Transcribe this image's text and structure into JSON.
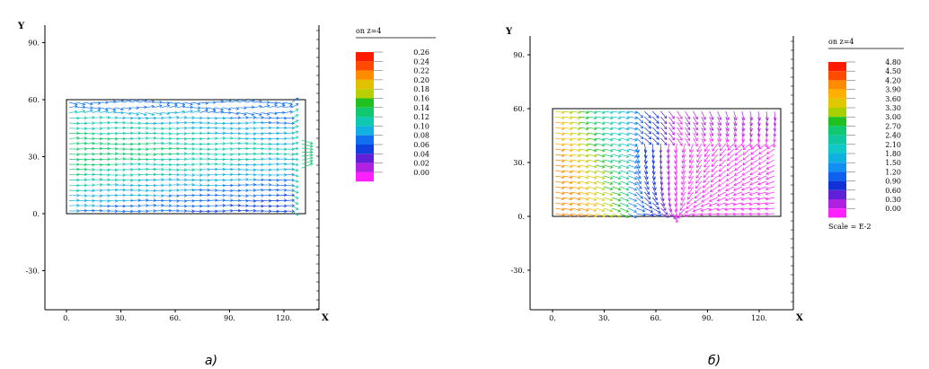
{
  "panels": [
    {
      "id": "a",
      "caption": "а)",
      "x_axis_name": "X",
      "y_axis_name": "Y",
      "x_ticks": [
        "0.",
        "30.",
        "60.",
        "90.",
        "120."
      ],
      "y_ticks": [
        "90.",
        "60.",
        "30.",
        "0.",
        "-30."
      ],
      "legend_title": "on z=4",
      "legend_values": [
        "0.26",
        "0.24",
        "0.22",
        "0.20",
        "0.18",
        "0.16",
        "0.14",
        "0.12",
        "0.10",
        "0.08",
        "0.06",
        "0.04",
        "0.02",
        "0.00"
      ],
      "legend_colors": [
        "#ff1a00",
        "#ff4a00",
        "#ff8c00",
        "#e0c000",
        "#b8d000",
        "#20c020",
        "#10c870",
        "#10c8b0",
        "#10b0e0",
        "#1070f0",
        "#1040e0",
        "#6020d8",
        "#b020e0",
        "#ff20ff"
      ],
      "legend_note": ""
    },
    {
      "id": "b",
      "caption": "б)",
      "x_axis_name": "X",
      "y_axis_name": "Y",
      "x_ticks": [
        "0.",
        "30.",
        "60.",
        "90.",
        "120."
      ],
      "y_ticks": [
        "90.",
        "60.",
        "30.",
        "0.",
        "-30."
      ],
      "legend_title": "on z=4",
      "legend_values": [
        "4.80",
        "4.50",
        "4.20",
        "3.90",
        "3.60",
        "3.30",
        "3.00",
        "2.70",
        "2.40",
        "2.10",
        "1.80",
        "1.50",
        "1.20",
        "0.90",
        "0.60",
        "0.30",
        "0.00"
      ],
      "legend_colors": [
        "#ff1a00",
        "#ff4a00",
        "#ff8c00",
        "#ffb000",
        "#e0c800",
        "#a8d000",
        "#20c020",
        "#10c870",
        "#10c8a0",
        "#10c8c8",
        "#10b0e0",
        "#1090f0",
        "#1060f0",
        "#1030d8",
        "#6020d8",
        "#b020e0",
        "#ff20ff"
      ],
      "legend_note": "Scale = E-2"
    }
  ],
  "domain_x": [
    0,
    132
  ],
  "domain_y": [
    0,
    60
  ]
}
